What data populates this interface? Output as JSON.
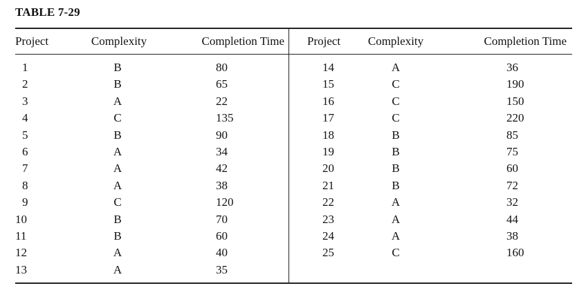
{
  "title": "TABLE 7-29",
  "headers": {
    "project": "Project",
    "complexity": "Complexity",
    "completion_time": "Completion Time"
  },
  "left_rows": [
    {
      "project": "1",
      "complexity": "B",
      "time": "80"
    },
    {
      "project": "2",
      "complexity": "B",
      "time": "65"
    },
    {
      "project": "3",
      "complexity": "A",
      "time": "22"
    },
    {
      "project": "4",
      "complexity": "C",
      "time": "135"
    },
    {
      "project": "5",
      "complexity": "B",
      "time": "90"
    },
    {
      "project": "6",
      "complexity": "A",
      "time": "34"
    },
    {
      "project": "7",
      "complexity": "A",
      "time": "42"
    },
    {
      "project": "8",
      "complexity": "A",
      "time": "38"
    },
    {
      "project": "9",
      "complexity": "C",
      "time": "120"
    },
    {
      "project": "10",
      "complexity": "B",
      "time": "70"
    },
    {
      "project": "11",
      "complexity": "B",
      "time": "60"
    },
    {
      "project": "12",
      "complexity": "A",
      "time": "40"
    },
    {
      "project": "13",
      "complexity": "A",
      "time": "35"
    }
  ],
  "right_rows": [
    {
      "project": "14",
      "complexity": "A",
      "time": "36"
    },
    {
      "project": "15",
      "complexity": "C",
      "time": "190"
    },
    {
      "project": "16",
      "complexity": "C",
      "time": "150"
    },
    {
      "project": "17",
      "complexity": "C",
      "time": "220"
    },
    {
      "project": "18",
      "complexity": "B",
      "time": "85"
    },
    {
      "project": "19",
      "complexity": "B",
      "time": "75"
    },
    {
      "project": "20",
      "complexity": "B",
      "time": "60"
    },
    {
      "project": "21",
      "complexity": "B",
      "time": "72"
    },
    {
      "project": "22",
      "complexity": "A",
      "time": "32"
    },
    {
      "project": "23",
      "complexity": "A",
      "time": "44"
    },
    {
      "project": "24",
      "complexity": "A",
      "time": "38"
    },
    {
      "project": "25",
      "complexity": "C",
      "time": "160"
    }
  ]
}
